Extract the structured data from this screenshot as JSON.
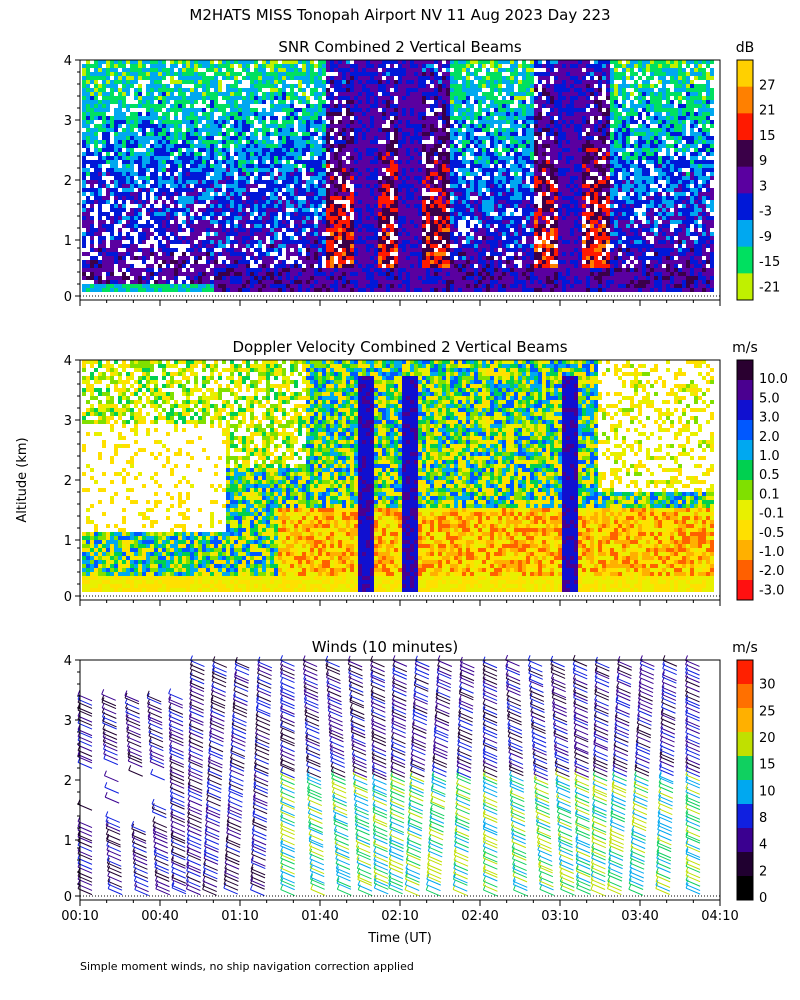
{
  "header": {
    "title": "M2HATS MISS Tonopah Airport NV  11 Aug 2023 Day 223"
  },
  "footnote": "Simple moment winds, no ship navigation correction applied",
  "chart_data": [
    {
      "type": "heatmap",
      "title": "SNR Combined 2 Vertical Beams",
      "xlabel": "",
      "ylabel": "",
      "ylim": [
        0,
        4
      ],
      "yticks": [
        "0",
        "1",
        "2",
        "3",
        "4"
      ],
      "colorbar": {
        "unit": "dB",
        "labels": [
          "27",
          "21",
          "15",
          "9",
          "3",
          "-3",
          "-9",
          "-15",
          "-21"
        ],
        "colors": [
          "#ffd000",
          "#ff8000",
          "#ff1a00",
          "#3a0048",
          "#5a00a0",
          "#0018d8",
          "#00a8f0",
          "#00e060",
          "#c0f000"
        ]
      }
    },
    {
      "type": "heatmap",
      "title": "Doppler Velocity Combined 2 Vertical Beams",
      "xlabel": "",
      "ylabel": "Altitude (km)",
      "ylim": [
        0,
        4
      ],
      "yticks": [
        "0",
        "1",
        "2",
        "3",
        "4"
      ],
      "colorbar": {
        "unit": "m/s",
        "labels": [
          "10.0",
          "5.0",
          "3.0",
          "2.0",
          "1.0",
          "0.5",
          "0.1",
          "-0.1",
          "-0.5",
          "-1.0",
          "-2.0",
          "-3.0"
        ],
        "colors": [
          "#2a0030",
          "#4a0090",
          "#1010d0",
          "#0058ff",
          "#00a8f0",
          "#00d050",
          "#80e000",
          "#e8f000",
          "#ffe000",
          "#ffb000",
          "#ff6000",
          "#ff1010"
        ]
      }
    },
    {
      "type": "scatter",
      "title": "Winds (10 minutes)",
      "xlabel": "Time (UT)",
      "ylabel": "",
      "ylim": [
        0,
        4
      ],
      "yticks": [
        "0",
        "1",
        "2",
        "3",
        "4"
      ],
      "xticks": [
        "00:10",
        "00:40",
        "01:10",
        "01:40",
        "02:10",
        "02:40",
        "03:10",
        "03:40",
        "04:10"
      ],
      "colorbar": {
        "unit": "m/s",
        "labels": [
          "30",
          "25",
          "20",
          "15",
          "10",
          "8",
          "4",
          "2",
          "0"
        ],
        "colors": [
          "#ff2000",
          "#ff7000",
          "#ffb000",
          "#c0e000",
          "#10d060",
          "#00a8f0",
          "#1020e0",
          "#3a0090",
          "#200030",
          "#000000"
        ]
      }
    }
  ]
}
